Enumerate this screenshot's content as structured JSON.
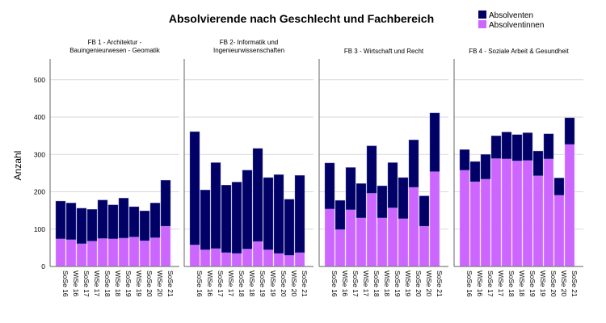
{
  "chart_data": {
    "type": "bar",
    "stacked": true,
    "title": "Absolvierende nach Geschlecht und Fachbereich",
    "xlabel": "",
    "ylabel": "Anzahl",
    "ylim": [
      0,
      550
    ],
    "yticks": [
      0,
      100,
      200,
      300,
      400,
      500
    ],
    "grid": true,
    "legend": {
      "placement": "top-right",
      "entries": [
        {
          "name": "Absolventen",
          "color": "#000066"
        },
        {
          "name": "Absolventinnen",
          "color": "#cc66ff"
        }
      ]
    },
    "categories": [
      "SoSe 16",
      "WiSe 16",
      "SoSe 17",
      "WiSe 17",
      "SoSe 18",
      "WiSe 18",
      "SoSe 19",
      "WiSe 19",
      "SoSe 20",
      "WiSe 20",
      "SoSe 21"
    ],
    "panels": [
      {
        "title_lines": [
          "FB 1 - Architektur -",
          "Bauingenieurwesen - Geomatik"
        ],
        "series": [
          {
            "name": "Absolventinnen",
            "values": [
              74,
              72,
              61,
              68,
              75,
              74,
              76,
              79,
              69,
              77,
              108
            ]
          },
          {
            "name": "Absolventen",
            "values": [
              101,
              98,
              95,
              85,
              103,
              91,
              107,
              81,
              80,
              93,
              123
            ]
          }
        ]
      },
      {
        "title_lines": [
          "FB 2- Informatik und",
          "Ingenieurwissenschaften"
        ],
        "series": [
          {
            "name": "Absolventinnen",
            "values": [
              58,
              45,
              48,
              37,
              35,
              47,
              67,
              45,
              35,
              30,
              37
            ]
          },
          {
            "name": "Absolventen",
            "values": [
              303,
              160,
              230,
              181,
              191,
              211,
              249,
              193,
              211,
              150,
              207
            ]
          }
        ]
      },
      {
        "title_lines": [
          "FB 3 - Wirtschaft und Recht"
        ],
        "series": [
          {
            "name": "Absolventinnen",
            "values": [
              154,
              99,
              152,
              130,
              196,
              130,
              157,
              128,
              212,
              108,
              254
            ]
          },
          {
            "name": "Absolventen",
            "values": [
              123,
              78,
              113,
              92,
              127,
              86,
              121,
              110,
              127,
              81,
              157
            ]
          }
        ]
      },
      {
        "title_lines": [
          "FB 4 - Soziale Arbeit & Gesundheit"
        ],
        "series": [
          {
            "name": "Absolventinnen",
            "values": [
              258,
              227,
              234,
              289,
              288,
              283,
              284,
              243,
              288,
              191,
              327
            ]
          },
          {
            "name": "Absolventen",
            "values": [
              55,
              54,
              66,
              61,
              72,
              70,
              74,
              66,
              67,
              46,
              71
            ]
          }
        ]
      }
    ]
  }
}
